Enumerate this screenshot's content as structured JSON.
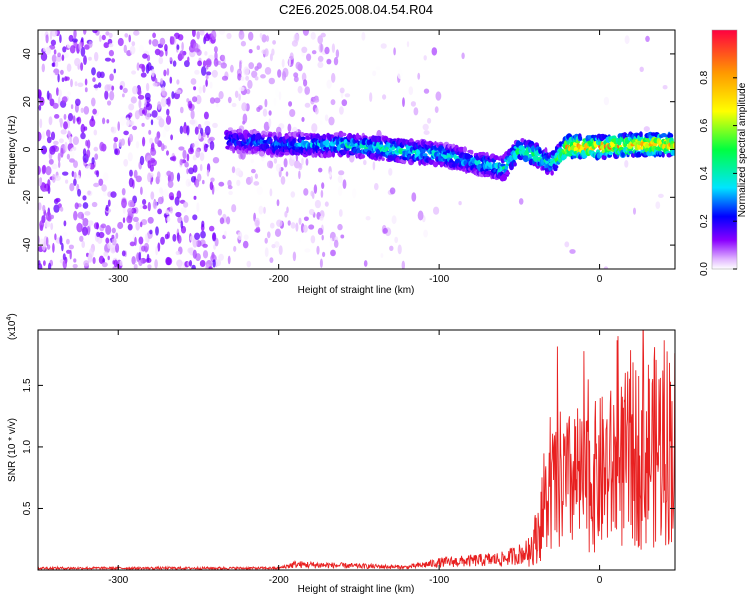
{
  "figure": {
    "title": "C2E6.2025.008.04.54.R04"
  },
  "chart_data": [
    {
      "type": "heatmap",
      "xlabel": "Height of straight line (km)",
      "ylabel": "Frequency (Hz)",
      "xlim": [
        -350,
        47
      ],
      "ylim": [
        -50,
        50
      ],
      "xticks": [
        -300,
        -200,
        -100,
        0
      ],
      "yticks": [
        -40,
        -20,
        0,
        20,
        40
      ],
      "grid": false,
      "colorbar": {
        "label": "Normalized spectral amplitude",
        "range": [
          0.0,
          1.0
        ],
        "ticks": [
          "0.0",
          "0.2",
          "0.4",
          "0.6",
          "0.8"
        ],
        "colors": [
          "#ffffff",
          "#e2b8ff",
          "#8a00ff",
          "#0000ff",
          "#00e5ff",
          "#00ff40",
          "#ffff00",
          "#ff9900",
          "#ff0040"
        ]
      },
      "ridge": {
        "x": [
          -230,
          -200,
          -160,
          -130,
          -100,
          -80,
          -60,
          -50,
          -40,
          -30,
          -20,
          0,
          20,
          47
        ],
        "y": [
          4,
          2,
          2,
          0,
          -2,
          -5,
          -8,
          0,
          -2,
          -6,
          1,
          1,
          2,
          2
        ],
        "peak_amplitude": [
          0.3,
          0.35,
          0.45,
          0.5,
          0.45,
          0.4,
          0.5,
          0.55,
          0.6,
          0.45,
          0.95,
          0.95,
          0.9,
          0.9
        ]
      }
    },
    {
      "type": "line",
      "xlabel": "Height of straight line (km)",
      "ylabel": "SNR (10 * v/v)",
      "yscale_label": "(x10",
      "yscale_exp": "4",
      "yscale_close": ")",
      "xlim": [
        -350,
        47
      ],
      "ylim": [
        0,
        1.95
      ],
      "xticks": [
        -300,
        -200,
        -100,
        0
      ],
      "yticks": [
        "0.5",
        "1.0",
        "1.5"
      ],
      "ytick_values": [
        0.5,
        1.0,
        1.5
      ],
      "color": "#e82020",
      "grid": false,
      "envelope": {
        "x": [
          -350,
          -200,
          -190,
          -120,
          -100,
          -60,
          -45,
          -40,
          -35,
          -30,
          -25,
          -20,
          -15,
          -10,
          0,
          10,
          20,
          30,
          40,
          47
        ],
        "y": [
          0.02,
          0.02,
          0.06,
          0.03,
          0.08,
          0.12,
          0.2,
          0.45,
          0.8,
          1.1,
          1.25,
          1.2,
          1.3,
          1.2,
          1.35,
          1.45,
          1.6,
          1.7,
          1.78,
          1.8
        ]
      }
    }
  ]
}
